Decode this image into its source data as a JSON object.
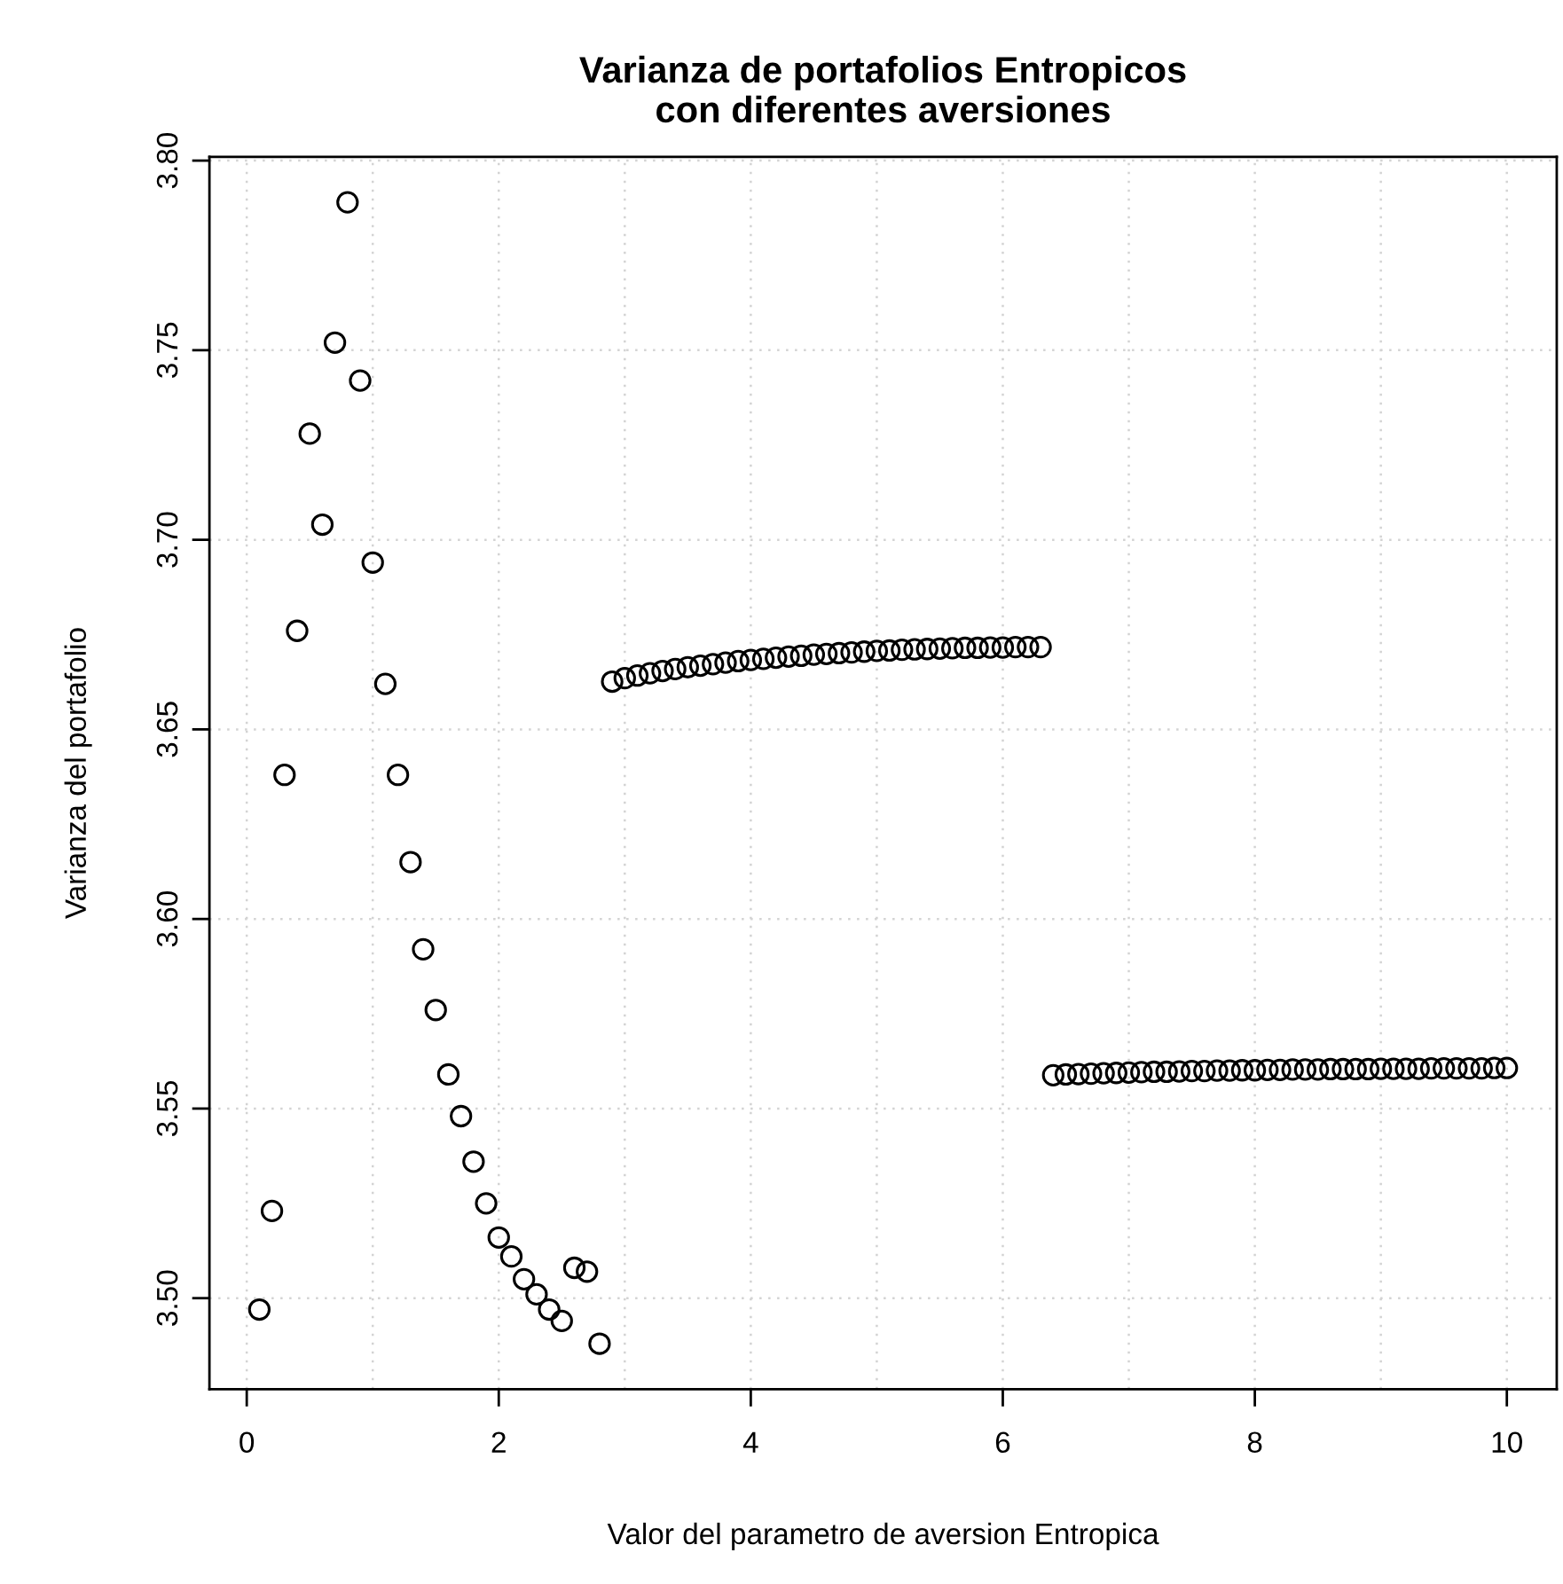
{
  "chart_data": {
    "type": "scatter",
    "title": "Varianza de portafolios Entropicos\ncon diferentes aversiones",
    "xlabel": "Valor del parametro de aversion Entropica",
    "ylabel": "Varianza del portafolio",
    "x": [
      0.1,
      0.2,
      0.3,
      0.4,
      0.5,
      0.6,
      0.7,
      0.8,
      0.9,
      1.0,
      1.1,
      1.2,
      1.3,
      1.4,
      1.5,
      1.6,
      1.7,
      1.8,
      1.9,
      2.0,
      2.1,
      2.2,
      2.3,
      2.4,
      2.5,
      2.6,
      2.7,
      2.8,
      2.9,
      3.0,
      3.1,
      3.2,
      3.3,
      3.4,
      3.5,
      3.6,
      3.7,
      3.8,
      3.9,
      4.0,
      4.1,
      4.2,
      4.3,
      4.4,
      4.5,
      4.6,
      4.7,
      4.8,
      4.9,
      5.0,
      5.1,
      5.2,
      5.3,
      5.4,
      5.5,
      5.6,
      5.7,
      5.8,
      5.9,
      6.0,
      6.1,
      6.2,
      6.3,
      6.4,
      6.5,
      6.6,
      6.7,
      6.8,
      6.9,
      7.0,
      7.1,
      7.2,
      7.3,
      7.4,
      7.5,
      7.6,
      7.7,
      7.8,
      7.9,
      8.0,
      8.1,
      8.2,
      8.3,
      8.4,
      8.5,
      8.6,
      8.7,
      8.8,
      8.9,
      9.0,
      9.1,
      9.2,
      9.3,
      9.4,
      9.5,
      9.6,
      9.7,
      9.8,
      9.9,
      10.0
    ],
    "values": [
      3.497,
      3.523,
      3.638,
      3.676,
      3.728,
      3.704,
      3.752,
      3.789,
      3.742,
      3.694,
      3.662,
      3.638,
      3.615,
      3.592,
      3.576,
      3.559,
      3.548,
      3.536,
      3.525,
      3.516,
      3.511,
      3.505,
      3.501,
      3.497,
      3.494,
      3.508,
      3.507,
      3.488,
      3.6626,
      3.6635,
      3.6642,
      3.6648,
      3.6654,
      3.6659,
      3.6664,
      3.6668,
      3.6672,
      3.6676,
      3.668,
      3.6683,
      3.6686,
      3.6689,
      3.6692,
      3.6694,
      3.6697,
      3.6699,
      3.6701,
      3.6703,
      3.6705,
      3.6707,
      3.6708,
      3.671,
      3.6711,
      3.6712,
      3.6713,
      3.6714,
      3.6715,
      3.6715,
      3.6716,
      3.6716,
      3.6717,
      3.6717,
      3.6717,
      3.5588,
      3.559,
      3.5591,
      3.5592,
      3.5593,
      3.5594,
      3.5595,
      3.5596,
      3.5597,
      3.5597,
      3.5598,
      3.5599,
      3.5599,
      3.56,
      3.56,
      3.5601,
      3.5601,
      3.5602,
      3.5602,
      3.5603,
      3.5603,
      3.5603,
      3.5604,
      3.5604,
      3.5604,
      3.5604,
      3.5605,
      3.5605,
      3.5605,
      3.5605,
      3.5606,
      3.5606,
      3.5606,
      3.5606,
      3.5606,
      3.5607,
      3.5607
    ],
    "color": "#000000",
    "marker": "circle",
    "xlim": [
      -0.296,
      10.396
    ],
    "ylim": [
      3.476,
      3.801
    ],
    "xticks": [
      0,
      2,
      4,
      6,
      8,
      10
    ],
    "yticks": [
      {
        "value": 3.5,
        "label": "3.50"
      },
      {
        "value": 3.55,
        "label": "3.55"
      },
      {
        "value": 3.6,
        "label": "3.60"
      },
      {
        "value": 3.65,
        "label": "3.65"
      },
      {
        "value": 3.7,
        "label": "3.70"
      },
      {
        "value": 3.75,
        "label": "3.75"
      },
      {
        "value": 3.8,
        "label": "3.80"
      }
    ],
    "grid": true
  }
}
